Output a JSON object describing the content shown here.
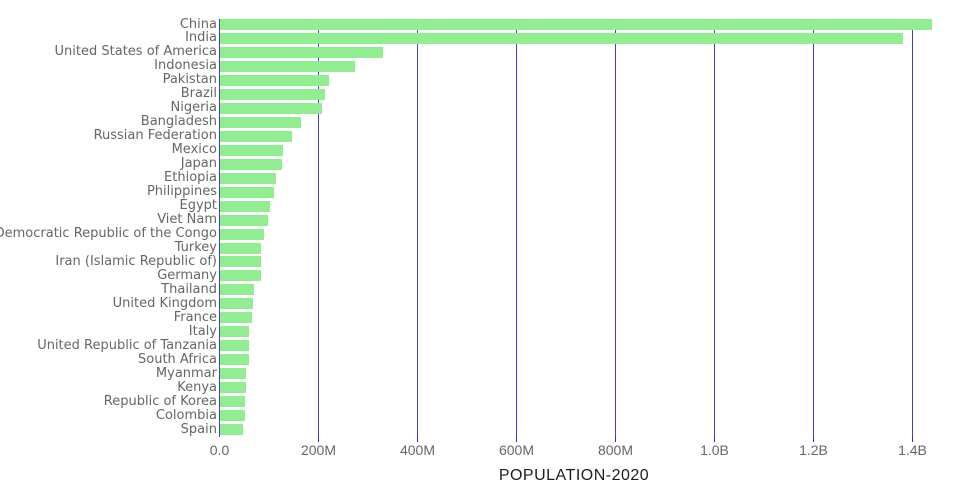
{
  "chart_data": {
    "type": "bar",
    "orientation": "horizontal",
    "title": "",
    "xlabel": "POPULATION-2020",
    "ylabel": "",
    "grid": true,
    "legend": false,
    "xlim_millions": [
      0,
      1447
    ],
    "x_ticks": [
      {
        "value_millions": 0,
        "label": "0.0"
      },
      {
        "value_millions": 200,
        "label": "200M"
      },
      {
        "value_millions": 400,
        "label": "400M"
      },
      {
        "value_millions": 600,
        "label": "600M"
      },
      {
        "value_millions": 800,
        "label": "800M"
      },
      {
        "value_millions": 1000,
        "label": "1.0B"
      },
      {
        "value_millions": 1200,
        "label": "1.2B"
      },
      {
        "value_millions": 1400,
        "label": "1.4B"
      }
    ],
    "categories": [
      "China",
      "India",
      "United States of America",
      "Indonesia",
      "Pakistan",
      "Brazil",
      "Nigeria",
      "Bangladesh",
      "Russian Federation",
      "Mexico",
      "Japan",
      "Ethiopia",
      "Philippines",
      "Egypt",
      "Viet Nam",
      "Democratic Republic of the Congo",
      "Turkey",
      "Iran (Islamic Republic of)",
      "Germany",
      "Thailand",
      "United Kingdom",
      "France",
      "Italy",
      "United Republic of Tanzania",
      "South Africa",
      "Myanmar",
      "Kenya",
      "Republic of Korea",
      "Colombia",
      "Spain"
    ],
    "values_millions": [
      1439.3,
      1380.0,
      331.0,
      273.5,
      220.9,
      212.6,
      206.1,
      164.7,
      145.9,
      128.9,
      126.5,
      115.0,
      109.6,
      102.3,
      97.3,
      89.6,
      84.3,
      84.0,
      83.8,
      69.8,
      67.9,
      65.3,
      60.5,
      59.7,
      59.3,
      54.4,
      53.8,
      51.3,
      50.9,
      46.8
    ],
    "colors": {
      "bar": "#90ee90",
      "gridline": "#4040e0",
      "tick_mark": "#2828cc",
      "tick_label": "#666666",
      "category_label": "#666666",
      "title": "#1e1e1e",
      "background": "#ffffff"
    }
  }
}
